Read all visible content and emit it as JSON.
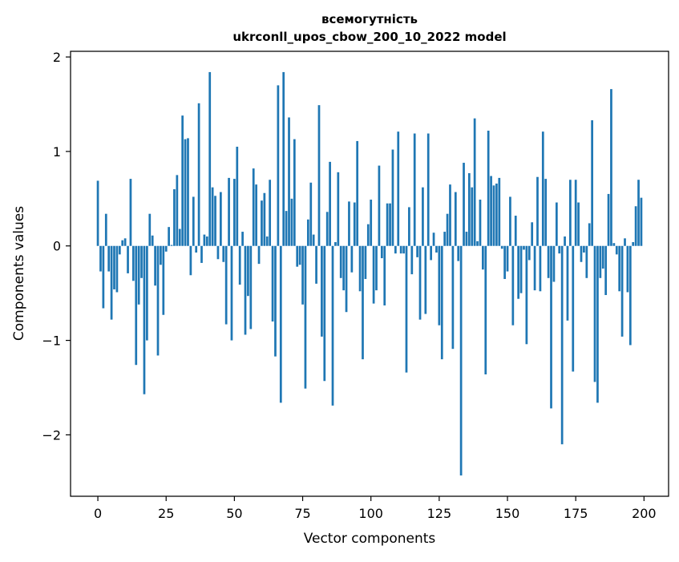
{
  "chart_data": {
    "type": "bar",
    "title": [
      "всемогутність",
      "ukrconll_upos_cbow_200_10_2022 model"
    ],
    "xlabel": "Vector components",
    "ylabel": "Components values",
    "xlim": [
      -10,
      209
    ],
    "ylim": [
      -2.65,
      2.06
    ],
    "xticks": [
      0,
      25,
      50,
      75,
      100,
      125,
      150,
      175,
      200
    ],
    "xtick_labels": [
      "0",
      "25",
      "50",
      "75",
      "100",
      "125",
      "150",
      "175",
      "200"
    ],
    "yticks": [
      -2,
      -1,
      0,
      1,
      2
    ],
    "ytick_labels": [
      "−2",
      "−1",
      "0",
      "1",
      "2"
    ],
    "grid": false,
    "bar_color": "#1f77b4",
    "x": [
      0,
      1,
      2,
      3,
      4,
      5,
      6,
      7,
      8,
      9,
      10,
      11,
      12,
      13,
      14,
      15,
      16,
      17,
      18,
      19,
      20,
      21,
      22,
      23,
      24,
      25,
      26,
      27,
      28,
      29,
      30,
      31,
      32,
      33,
      34,
      35,
      36,
      37,
      38,
      39,
      40,
      41,
      42,
      43,
      44,
      45,
      46,
      47,
      48,
      49,
      50,
      51,
      52,
      53,
      54,
      55,
      56,
      57,
      58,
      59,
      60,
      61,
      62,
      63,
      64,
      65,
      66,
      67,
      68,
      69,
      70,
      71,
      72,
      73,
      74,
      75,
      76,
      77,
      78,
      79,
      80,
      81,
      82,
      83,
      84,
      85,
      86,
      87,
      88,
      89,
      90,
      91,
      92,
      93,
      94,
      95,
      96,
      97,
      98,
      99,
      100,
      101,
      102,
      103,
      104,
      105,
      106,
      107,
      108,
      109,
      110,
      111,
      112,
      113,
      114,
      115,
      116,
      117,
      118,
      119,
      120,
      121,
      122,
      123,
      124,
      125,
      126,
      127,
      128,
      129,
      130,
      131,
      132,
      133,
      134,
      135,
      136,
      137,
      138,
      139,
      140,
      141,
      142,
      143,
      144,
      145,
      146,
      147,
      148,
      149,
      150,
      151,
      152,
      153,
      154,
      155,
      156,
      157,
      158,
      159,
      160,
      161,
      162,
      163,
      164,
      165,
      166,
      167,
      168,
      169,
      170,
      171,
      172,
      173,
      174,
      175,
      176,
      177,
      178,
      179,
      180,
      181,
      182,
      183,
      184,
      185,
      186,
      187,
      188,
      189,
      190,
      191,
      192,
      193,
      194,
      195,
      196,
      197,
      198,
      199
    ],
    "values": [
      0.69,
      -0.27,
      -0.66,
      0.34,
      -0.27,
      -0.78,
      -0.46,
      -0.49,
      -0.09,
      0.06,
      0.08,
      -0.29,
      0.71,
      -0.37,
      -1.26,
      -0.62,
      -0.34,
      -1.57,
      -1.0,
      0.34,
      0.11,
      -0.42,
      -1.16,
      -0.2,
      -0.73,
      -0.06,
      0.2,
      0.01,
      0.6,
      0.75,
      0.18,
      1.38,
      1.13,
      1.14,
      -0.31,
      0.52,
      -0.07,
      1.51,
      -0.18,
      0.12,
      0.1,
      1.84,
      0.62,
      0.53,
      -0.14,
      0.57,
      -0.17,
      -0.83,
      0.72,
      -1.0,
      0.71,
      1.05,
      -0.41,
      0.15,
      -0.94,
      -0.53,
      -0.88,
      0.82,
      0.65,
      -0.19,
      0.48,
      0.56,
      0.1,
      0.7,
      -0.8,
      -1.17,
      1.7,
      -1.66,
      1.84,
      0.37,
      1.36,
      0.5,
      1.13,
      -0.22,
      -0.2,
      -0.62,
      -1.51,
      0.28,
      0.67,
      0.12,
      -0.4,
      1.49,
      -0.96,
      -1.43,
      0.36,
      0.89,
      -1.69,
      0.04,
      0.78,
      -0.34,
      -0.47,
      -0.7,
      0.47,
      -0.28,
      0.46,
      1.11,
      -0.48,
      -1.2,
      -0.35,
      0.23,
      0.49,
      -0.61,
      -0.47,
      0.85,
      -0.13,
      -0.63,
      0.45,
      0.45,
      1.02,
      -0.08,
      1.21,
      -0.08,
      -0.08,
      -1.34,
      0.41,
      -0.3,
      1.19,
      -0.12,
      -0.78,
      0.62,
      -0.72,
      1.19,
      -0.15,
      0.14,
      -0.07,
      -0.84,
      -1.2,
      0.15,
      0.34,
      0.65,
      -1.09,
      0.57,
      -0.16,
      -2.43,
      0.88,
      0.15,
      0.77,
      0.62,
      1.35,
      0.05,
      0.49,
      -0.25,
      -1.36,
      1.22,
      0.74,
      0.64,
      0.66,
      0.72,
      -0.03,
      -0.35,
      -0.27,
      0.52,
      -0.84,
      0.32,
      -0.56,
      -0.5,
      -0.04,
      -1.04,
      -0.15,
      0.25,
      -0.47,
      0.73,
      -0.48,
      1.21,
      0.71,
      -0.34,
      -1.72,
      -0.38,
      0.46,
      -0.08,
      -2.1,
      0.1,
      -0.79,
      0.7,
      -1.33,
      0.7,
      0.46,
      -0.17,
      -0.07,
      -0.34,
      0.24,
      1.33,
      -1.44,
      -1.66,
      -0.34,
      -0.24,
      -0.52,
      0.55,
      1.66,
      0.03,
      -0.09,
      -0.48,
      -0.96,
      0.08,
      -0.49,
      -1.05,
      0.04,
      0.42,
      0.7,
      0.51
    ]
  }
}
